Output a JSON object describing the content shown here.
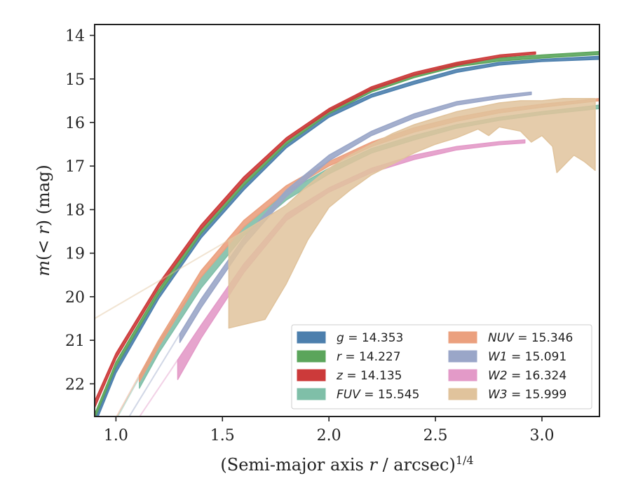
{
  "chart_data": {
    "type": "area",
    "title": "",
    "xlabel": "(Semi-major axis r / arcsec)",
    "xlabel_parts": [
      "(Semi-major axis ",
      "r",
      " / arcsec)",
      "1/4"
    ],
    "ylabel_parts": [
      "m",
      "(< ",
      "r",
      ") (mag)"
    ],
    "xlim": [
      0.9,
      3.27
    ],
    "ylim": [
      22.75,
      13.75
    ],
    "y_inverted": true,
    "xticks": [
      1.0,
      1.5,
      2.0,
      2.5,
      3.0
    ],
    "xtick_labels": [
      "1.0",
      "1.5",
      "2.0",
      "2.5",
      "3.0"
    ],
    "yticks": [
      14,
      15,
      16,
      17,
      18,
      19,
      20,
      21,
      22
    ],
    "ytick_labels": [
      "14",
      "15",
      "16",
      "17",
      "18",
      "19",
      "20",
      "21",
      "22"
    ],
    "grid": false,
    "legend_position": "lower-right",
    "legend_columns": 2,
    "series": [
      {
        "name": "g = 14.353",
        "var": "g",
        "value": "14.353",
        "italic_var": true,
        "color": "#4c7fad",
        "upper": [
          [
            0.9,
            22.85
          ],
          [
            1.0,
            21.65
          ],
          [
            1.2,
            19.95
          ],
          [
            1.4,
            18.55
          ],
          [
            1.6,
            17.45
          ],
          [
            1.8,
            16.5
          ],
          [
            2.0,
            15.8
          ],
          [
            2.2,
            15.35
          ],
          [
            2.4,
            15.05
          ],
          [
            2.6,
            14.78
          ],
          [
            2.8,
            14.62
          ],
          [
            3.0,
            14.55
          ],
          [
            3.27,
            14.48
          ]
        ],
        "lower": [
          [
            0.9,
            22.95
          ],
          [
            1.0,
            21.75
          ],
          [
            1.2,
            20.05
          ],
          [
            1.4,
            18.65
          ],
          [
            1.6,
            17.55
          ],
          [
            1.8,
            16.58
          ],
          [
            2.0,
            15.88
          ],
          [
            2.2,
            15.42
          ],
          [
            2.4,
            15.12
          ],
          [
            2.6,
            14.85
          ],
          [
            2.8,
            14.68
          ],
          [
            3.0,
            14.6
          ],
          [
            3.27,
            14.55
          ]
        ],
        "faded_from": 2.95
      },
      {
        "name": "r = 14.227",
        "var": "r",
        "value": "14.227",
        "italic_var": true,
        "color": "#5ba55b",
        "upper": [
          [
            0.9,
            22.7
          ],
          [
            1.0,
            21.5
          ],
          [
            1.2,
            19.85
          ],
          [
            1.4,
            18.45
          ],
          [
            1.6,
            17.35
          ],
          [
            1.8,
            16.42
          ],
          [
            2.0,
            15.72
          ],
          [
            2.2,
            15.22
          ],
          [
            2.4,
            14.9
          ],
          [
            2.6,
            14.65
          ],
          [
            2.8,
            14.52
          ],
          [
            3.0,
            14.45
          ],
          [
            3.27,
            14.37
          ]
        ],
        "lower": [
          [
            0.9,
            22.8
          ],
          [
            1.0,
            21.6
          ],
          [
            1.2,
            19.95
          ],
          [
            1.4,
            18.55
          ],
          [
            1.6,
            17.45
          ],
          [
            1.8,
            16.5
          ],
          [
            2.0,
            15.8
          ],
          [
            2.2,
            15.3
          ],
          [
            2.4,
            14.97
          ],
          [
            2.6,
            14.72
          ],
          [
            2.8,
            14.59
          ],
          [
            3.0,
            14.52
          ],
          [
            3.27,
            14.44
          ]
        ],
        "faded_from": 2.95
      },
      {
        "name": "z = 14.135",
        "var": "z",
        "value": "14.135",
        "italic_var": true,
        "color": "#cc3a3a",
        "upper": [
          [
            0.9,
            22.4
          ],
          [
            1.0,
            21.3
          ],
          [
            1.2,
            19.7
          ],
          [
            1.4,
            18.35
          ],
          [
            1.6,
            17.25
          ],
          [
            1.8,
            16.35
          ],
          [
            2.0,
            15.68
          ],
          [
            2.2,
            15.18
          ],
          [
            2.4,
            14.85
          ],
          [
            2.6,
            14.62
          ],
          [
            2.8,
            14.45
          ],
          [
            2.97,
            14.38
          ]
        ],
        "lower": [
          [
            0.9,
            22.55
          ],
          [
            1.0,
            21.42
          ],
          [
            1.2,
            19.8
          ],
          [
            1.4,
            18.45
          ],
          [
            1.6,
            17.35
          ],
          [
            1.8,
            16.42
          ],
          [
            2.0,
            15.75
          ],
          [
            2.2,
            15.25
          ],
          [
            2.4,
            14.92
          ],
          [
            2.6,
            14.69
          ],
          [
            2.8,
            14.5
          ],
          [
            2.97,
            14.43
          ]
        ],
        "faded_from": 3.27
      },
      {
        "name": "FUV = 15.545",
        "var": "FUV",
        "value": "15.545",
        "italic_var": true,
        "color": "#7fbfa8",
        "upper": [
          [
            1.11,
            21.85
          ],
          [
            1.2,
            21.05
          ],
          [
            1.4,
            19.55
          ],
          [
            1.6,
            18.4
          ],
          [
            1.8,
            17.6
          ],
          [
            2.0,
            17.05
          ],
          [
            2.2,
            16.6
          ],
          [
            2.4,
            16.3
          ],
          [
            2.6,
            16.05
          ],
          [
            2.8,
            15.88
          ],
          [
            3.0,
            15.75
          ],
          [
            3.27,
            15.6
          ]
        ],
        "lower": [
          [
            1.11,
            22.1
          ],
          [
            1.2,
            21.3
          ],
          [
            1.4,
            19.8
          ],
          [
            1.6,
            18.6
          ],
          [
            1.8,
            17.78
          ],
          [
            2.0,
            17.18
          ],
          [
            2.2,
            16.7
          ],
          [
            2.4,
            16.4
          ],
          [
            2.6,
            16.13
          ],
          [
            2.8,
            15.95
          ],
          [
            3.0,
            15.82
          ],
          [
            3.27,
            15.68
          ]
        ],
        "faded_from": 3.27
      },
      {
        "name": "NUV = 15.346",
        "var": "NUV",
        "value": "15.346",
        "italic_var": true,
        "color": "#eba07e",
        "upper": [
          [
            1.11,
            21.8
          ],
          [
            1.2,
            21.0
          ],
          [
            1.4,
            19.4
          ],
          [
            1.6,
            18.25
          ],
          [
            1.8,
            17.45
          ],
          [
            2.0,
            16.9
          ],
          [
            2.2,
            16.45
          ],
          [
            2.4,
            16.12
          ],
          [
            2.6,
            15.88
          ],
          [
            2.8,
            15.7
          ],
          [
            3.0,
            15.58
          ],
          [
            3.27,
            15.45
          ]
        ],
        "lower": [
          [
            1.11,
            21.95
          ],
          [
            1.2,
            21.15
          ],
          [
            1.4,
            19.55
          ],
          [
            1.6,
            18.4
          ],
          [
            1.8,
            17.58
          ],
          [
            2.0,
            17.0
          ],
          [
            2.2,
            16.55
          ],
          [
            2.4,
            16.22
          ],
          [
            2.6,
            15.97
          ],
          [
            2.8,
            15.78
          ],
          [
            3.0,
            15.65
          ],
          [
            3.27,
            15.5
          ]
        ],
        "faded_from": 3.27
      },
      {
        "name": "W1 = 15.091",
        "var": "W1",
        "value": "15.091",
        "italic_var": true,
        "color": "#9aa6c8",
        "upper": [
          [
            1.3,
            20.85
          ],
          [
            1.4,
            20.05
          ],
          [
            1.6,
            18.65
          ],
          [
            1.8,
            17.55
          ],
          [
            2.0,
            16.75
          ],
          [
            2.2,
            16.2
          ],
          [
            2.4,
            15.8
          ],
          [
            2.6,
            15.52
          ],
          [
            2.8,
            15.38
          ],
          [
            2.95,
            15.3
          ]
        ],
        "lower": [
          [
            1.3,
            21.05
          ],
          [
            1.4,
            20.25
          ],
          [
            1.6,
            18.82
          ],
          [
            1.8,
            17.7
          ],
          [
            2.0,
            16.88
          ],
          [
            2.2,
            16.3
          ],
          [
            2.4,
            15.9
          ],
          [
            2.6,
            15.6
          ],
          [
            2.8,
            15.45
          ],
          [
            2.95,
            15.36
          ]
        ],
        "faded_from": 2.95
      },
      {
        "name": "W2 = 16.324",
        "var": "W2",
        "value": "16.324",
        "italic_var": true,
        "color": "#e39ac8",
        "upper": [
          [
            1.29,
            21.45
          ],
          [
            1.4,
            20.65
          ],
          [
            1.6,
            19.25
          ],
          [
            1.8,
            18.1
          ],
          [
            2.0,
            17.5
          ],
          [
            2.2,
            17.05
          ],
          [
            2.4,
            16.75
          ],
          [
            2.6,
            16.55
          ],
          [
            2.8,
            16.44
          ],
          [
            2.92,
            16.4
          ]
        ],
        "lower": [
          [
            1.29,
            21.9
          ],
          [
            1.4,
            20.95
          ],
          [
            1.6,
            19.45
          ],
          [
            1.8,
            18.25
          ],
          [
            2.0,
            17.6
          ],
          [
            2.2,
            17.15
          ],
          [
            2.4,
            16.85
          ],
          [
            2.6,
            16.63
          ],
          [
            2.8,
            16.51
          ],
          [
            2.92,
            16.47
          ]
        ],
        "faded_from": 2.92
      },
      {
        "name": "W3 = 15.999",
        "var": "W3",
        "value": "15.999",
        "italic_var": true,
        "color": "#e0c39c",
        "upper": [
          [
            1.53,
            18.7
          ],
          [
            1.6,
            18.5
          ],
          [
            1.7,
            18.2
          ],
          [
            1.8,
            17.9
          ],
          [
            1.9,
            17.45
          ],
          [
            2.0,
            17.05
          ],
          [
            2.1,
            16.75
          ],
          [
            2.2,
            16.5
          ],
          [
            2.3,
            16.25
          ],
          [
            2.4,
            16.05
          ],
          [
            2.5,
            15.9
          ],
          [
            2.6,
            15.75
          ],
          [
            2.7,
            15.65
          ],
          [
            2.8,
            15.55
          ],
          [
            2.9,
            15.5
          ],
          [
            3.0,
            15.5
          ],
          [
            3.1,
            15.45
          ],
          [
            3.2,
            15.45
          ],
          [
            3.25,
            15.45
          ]
        ],
        "lower": [
          [
            1.53,
            20.72
          ],
          [
            1.7,
            20.52
          ],
          [
            1.8,
            19.7
          ],
          [
            1.9,
            18.7
          ],
          [
            2.0,
            17.95
          ],
          [
            2.1,
            17.55
          ],
          [
            2.2,
            17.2
          ],
          [
            2.3,
            16.95
          ],
          [
            2.4,
            16.7
          ],
          [
            2.5,
            16.5
          ],
          [
            2.6,
            16.35
          ],
          [
            2.7,
            16.15
          ],
          [
            2.75,
            16.3
          ],
          [
            2.8,
            16.1
          ],
          [
            2.9,
            16.2
          ],
          [
            2.95,
            16.45
          ],
          [
            3.0,
            16.3
          ],
          [
            3.05,
            16.55
          ],
          [
            3.07,
            17.15
          ],
          [
            3.12,
            16.9
          ],
          [
            3.15,
            16.75
          ],
          [
            3.2,
            16.9
          ],
          [
            3.25,
            17.1
          ]
        ],
        "faded_from": 3.27
      }
    ]
  }
}
